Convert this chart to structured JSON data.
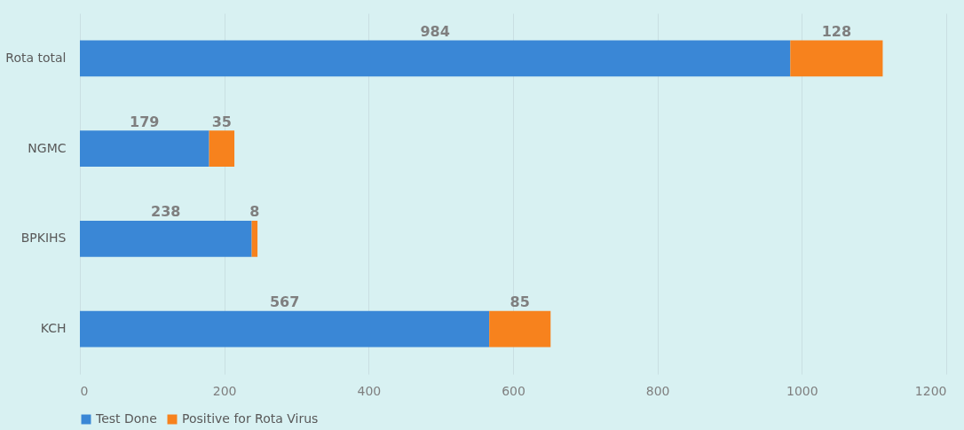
{
  "chart_data": {
    "type": "bar",
    "orientation": "horizontal",
    "stacked": true,
    "categories": [
      "Rota total",
      "NGMC",
      "BPKIHS",
      "KCH"
    ],
    "series": [
      {
        "name": "Test Done",
        "color": "#3a87d6",
        "values": [
          984,
          179,
          238,
          567
        ]
      },
      {
        "name": "Positive for Rota Virus",
        "color": "#f7821d",
        "values": [
          128,
          35,
          8,
          85
        ]
      }
    ],
    "xlim": [
      0,
      1200
    ],
    "xticks": [
      0,
      200,
      400,
      600,
      800,
      1000,
      1200
    ],
    "grid": "x",
    "legend": "bottom",
    "data_labels": true
  }
}
